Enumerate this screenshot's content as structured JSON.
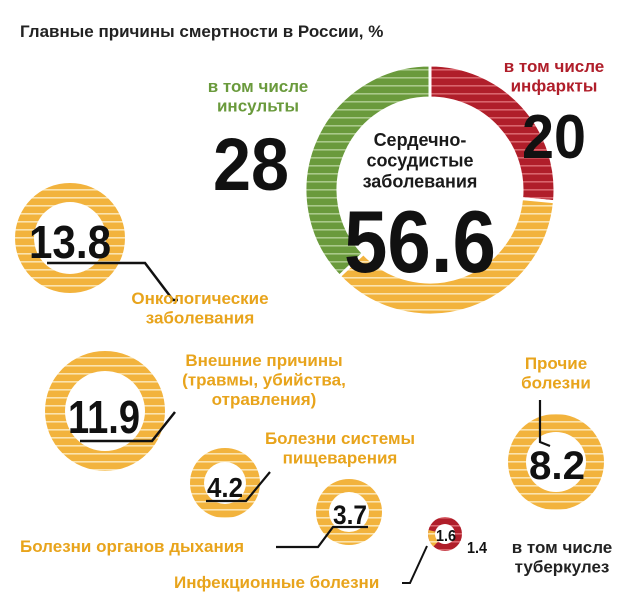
{
  "chart_data": {
    "type": "pie",
    "title": "Главные причины смертности в России, %",
    "colors": {
      "orange": "#f2b33d",
      "orange_light": "#fbe3ae",
      "green": "#6a9a3c",
      "green_light": "#a9c98a",
      "red": "#b01e2a",
      "red_light": "#d9646c",
      "ink": "#111111"
    },
    "main": {
      "label": "Сердечно-\nсосудистые\nзаболевания",
      "value": 56.6,
      "value_text": "56.6",
      "subsegments": [
        {
          "label": "в том числе\nинсульты",
          "value": 28,
          "value_text": "28",
          "color": "green"
        },
        {
          "label": "в том числе\nинфаркты",
          "value": 20,
          "value_text": "20",
          "color": "red"
        }
      ]
    },
    "others": [
      {
        "id": "onko",
        "label": "Онкологические\nзаболевания",
        "value": 13.8,
        "value_text": "13.8"
      },
      {
        "id": "external",
        "label": "Внешние причины\n(травмы, убийства,\nотравления)",
        "value": 11.9,
        "value_text": "11.9"
      },
      {
        "id": "digestive",
        "label": "Болезни системы\nпищеварения",
        "value": 4.2,
        "value_text": "4.2"
      },
      {
        "id": "respiratory",
        "label": "Болезни органов дыхания",
        "value": 3.7,
        "value_text": "3.7"
      },
      {
        "id": "other",
        "label": "Прочие\nболезни",
        "value": 8.2,
        "value_text": "8.2"
      },
      {
        "id": "infectious",
        "label": "Инфекционные болезни",
        "value": 1.6,
        "value_text": "1.6",
        "sub": {
          "label": "в том числе\nтуберкулез",
          "value": 1.4,
          "value_text": "1.4"
        }
      }
    ]
  }
}
